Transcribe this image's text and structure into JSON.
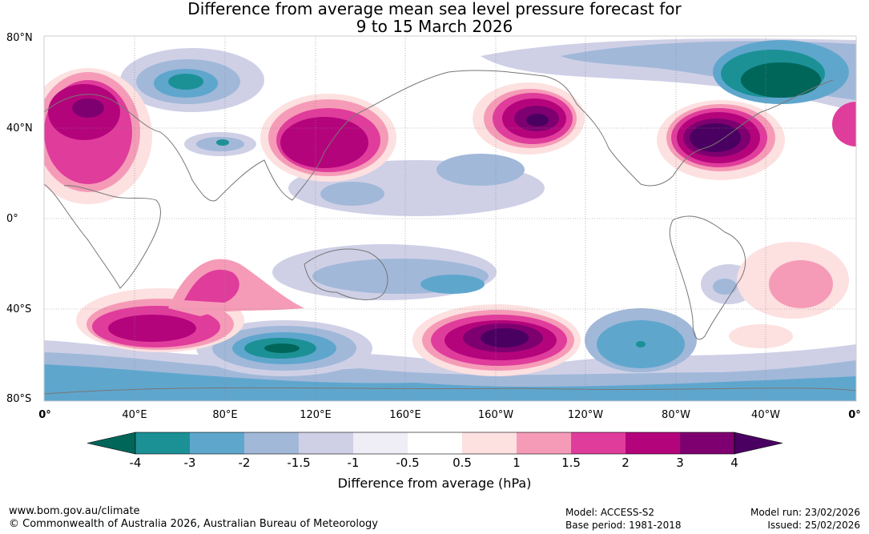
{
  "title_line1": "Difference from average mean sea level pressure forecast for",
  "title_line2": "9 to 15 March 2026",
  "lat_labels": [
    "80°N",
    "40°N",
    "0°",
    "40°S",
    "80°S"
  ],
  "lon_labels": [
    "0°",
    "40°E",
    "80°E",
    "120°E",
    "160°E",
    "160°W",
    "120°W",
    "80°W",
    "40°W",
    "0°"
  ],
  "colorbar": {
    "ticks": [
      "-4",
      "-3",
      "-2",
      "-1.5",
      "-1",
      "-0.5",
      "0.5",
      "1",
      "1.5",
      "2",
      "3",
      "4"
    ],
    "colors": [
      "#1b9196",
      "#5fa6cd",
      "#a1b8d9",
      "#cfd0e6",
      "#efedf5",
      "#ffffff",
      "#fde0e0",
      "#f59bb7",
      "#e03c9c",
      "#b4047c",
      "#7e0070"
    ],
    "under_color": "#00665a",
    "over_color": "#4a0060",
    "title": "Difference from average (hPa)"
  },
  "footer": {
    "url": "www.bom.gov.au/climate",
    "copyright": "© Commonwealth of Australia 2026, Australian Bureau of Meteorology",
    "model": "Model: ACCESS-S2",
    "base_period": "Base period: 1981-2018",
    "model_run": "Model run: 23/02/2026",
    "issued": "Issued: 25/02/2026"
  }
}
